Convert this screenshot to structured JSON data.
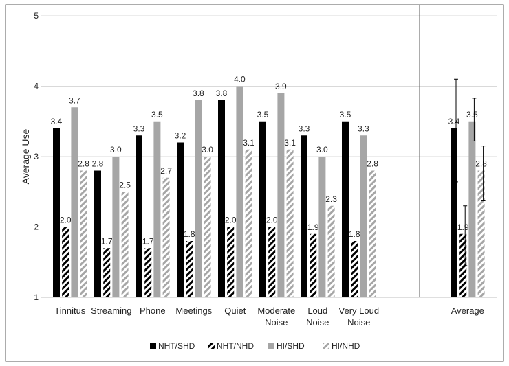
{
  "chart_data": {
    "type": "bar",
    "title": "",
    "xlabel": "",
    "ylabel": "Average Use",
    "ylim": [
      1,
      5
    ],
    "yticks": [
      1,
      2,
      3,
      4,
      5
    ],
    "grid": true,
    "legend_position": "bottom",
    "categories": [
      [
        "Tinnitus"
      ],
      [
        "Streaming"
      ],
      [
        "Phone"
      ],
      [
        "Meetings"
      ],
      [
        "Quiet"
      ],
      [
        "Moderate",
        "Noise"
      ],
      [
        "Loud",
        "Noise"
      ],
      [
        "Very Loud",
        "Noise"
      ]
    ],
    "series": [
      {
        "name": "NHT/SHD",
        "style": "solid-black",
        "values": [
          3.4,
          2.8,
          3.3,
          3.2,
          3.8,
          3.5,
          3.3,
          3.5
        ],
        "labels": [
          "3.4",
          "2.8",
          "3.3",
          "3.2",
          "3.8",
          "3.5",
          "3.3",
          "3.5"
        ]
      },
      {
        "name": "NHT/NHD",
        "style": "hatch-black",
        "values": [
          2.0,
          1.7,
          1.7,
          1.8,
          2.0,
          2.0,
          1.9,
          1.8
        ],
        "labels": [
          "2.0",
          "1.7",
          "1.7",
          "1.8",
          "2.0",
          "2.0",
          "1.9",
          "1.8"
        ]
      },
      {
        "name": "HI/SHD",
        "style": "solid-gray",
        "values": [
          3.7,
          3.0,
          3.5,
          3.8,
          4.0,
          3.9,
          3.0,
          3.3
        ],
        "labels": [
          "3.7",
          "3.0",
          "3.5",
          "3.8",
          "4.0",
          "3.9",
          "3.0",
          "3.3"
        ]
      },
      {
        "name": "HI/NHD",
        "style": "hatch-gray",
        "values": [
          2.8,
          2.5,
          2.7,
          3.0,
          3.1,
          3.1,
          2.3,
          2.8
        ],
        "labels": [
          "2.8",
          "2.5",
          "2.7",
          "3.0",
          "3.1",
          "3.1",
          "2.3",
          "2.8"
        ]
      }
    ],
    "average": {
      "category": [
        "Average"
      ],
      "values": [
        3.4,
        1.9,
        3.5,
        2.8
      ],
      "labels": [
        "3.4",
        "1.9",
        "3.5",
        "2.8"
      ],
      "errors": [
        [
          2.64,
          4.1
        ],
        [
          1.45,
          2.3
        ],
        [
          3.22,
          3.83
        ],
        [
          2.38,
          3.15
        ]
      ]
    },
    "colors": {
      "black": "#000000",
      "gray": "#a6a6a6",
      "grid": "#d9d9d9",
      "frame": "#595959"
    }
  }
}
